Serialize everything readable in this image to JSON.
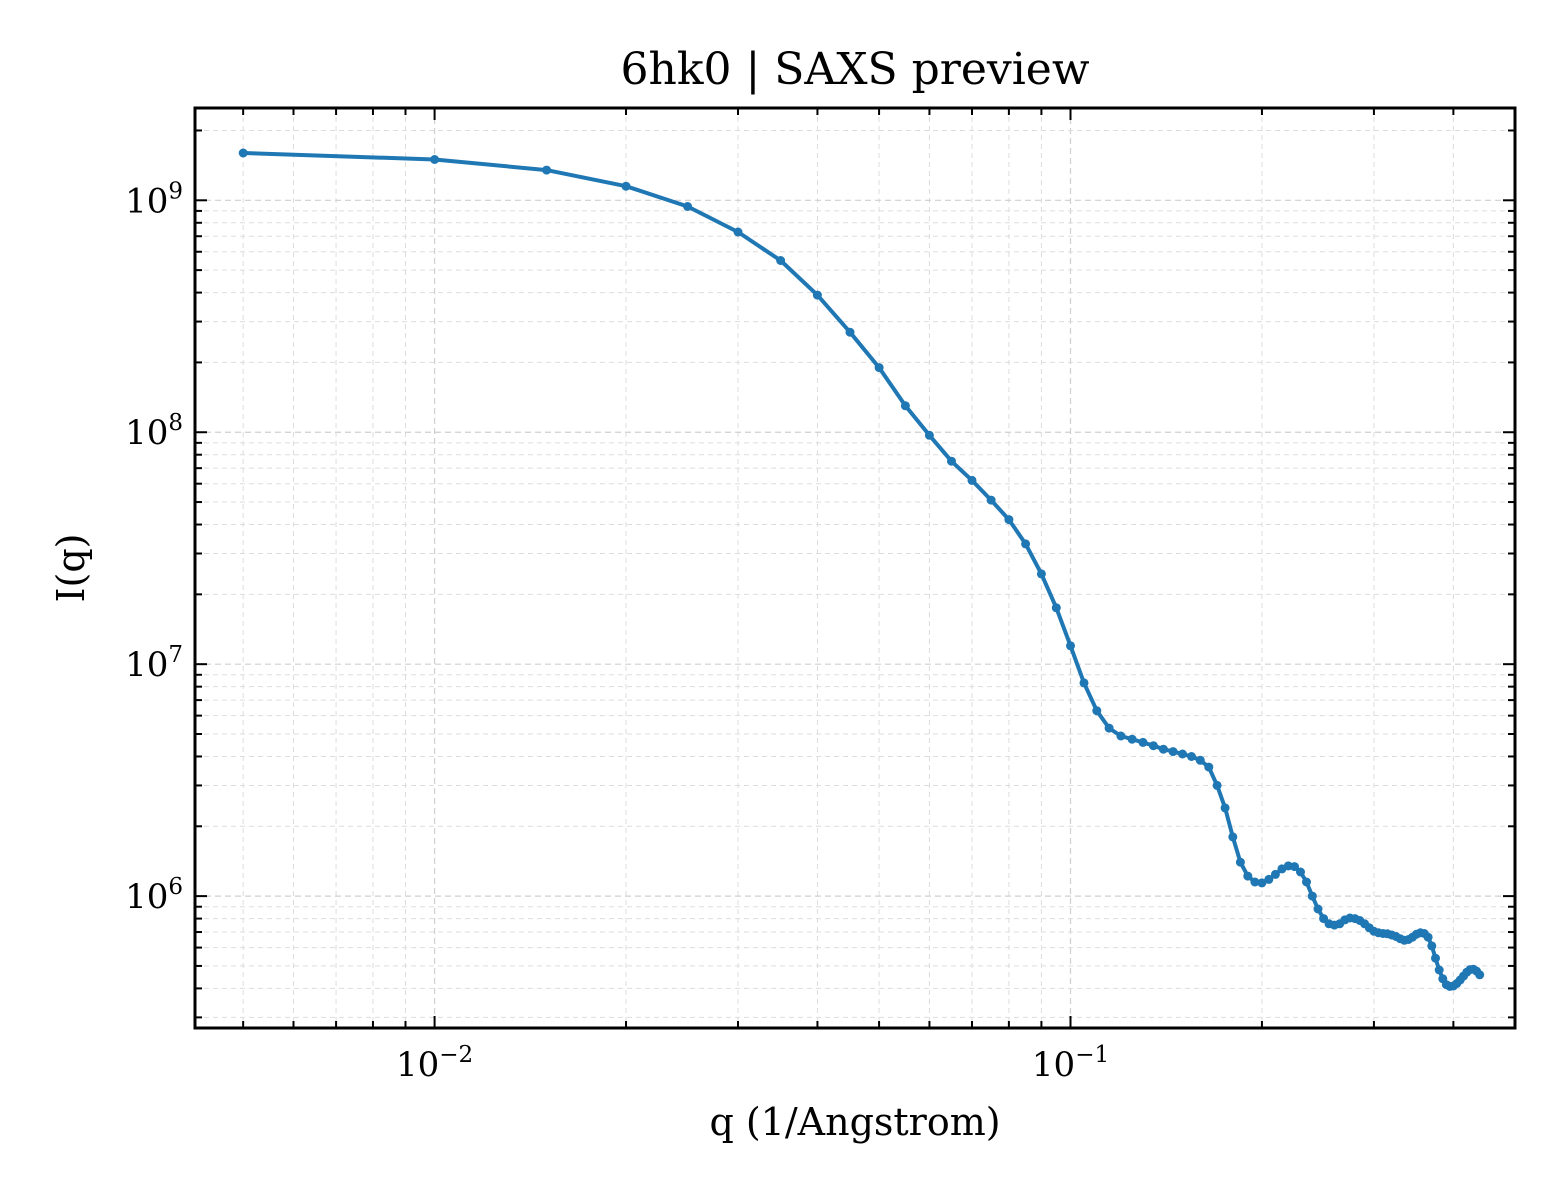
{
  "chart_data": {
    "type": "line",
    "title": "6hk0 | SAXS preview",
    "xlabel": "q (1/Angstrom)",
    "ylabel": "I(q)",
    "xscale": "log",
    "yscale": "log",
    "xlim": [
      0.0042,
      0.5
    ],
    "ylim": [
      270000,
      2500000000
    ],
    "grid": true,
    "legend": "none",
    "colors": {
      "series": "#1f77b4"
    },
    "x_ticks": [
      {
        "value": 0.01,
        "base": "10",
        "exp": "−2"
      },
      {
        "value": 0.1,
        "base": "10",
        "exp": "−1"
      }
    ],
    "y_ticks": [
      {
        "value": 1000000,
        "base": "10",
        "exp": "6"
      },
      {
        "value": 10000000,
        "base": "10",
        "exp": "7"
      },
      {
        "value": 100000000,
        "base": "10",
        "exp": "8"
      },
      {
        "value": 1000000000,
        "base": "10",
        "exp": "9"
      }
    ],
    "series": [
      {
        "marker": "circle",
        "points": [
          [
            0.005,
            1600000000
          ],
          [
            0.01,
            1500000000
          ],
          [
            0.015,
            1350000000
          ],
          [
            0.02,
            1150000000
          ],
          [
            0.025,
            940000000
          ],
          [
            0.03,
            730000000
          ],
          [
            0.035,
            550000000
          ],
          [
            0.04,
            390000000
          ],
          [
            0.045,
            270000000
          ],
          [
            0.05,
            190000000
          ],
          [
            0.055,
            130000000
          ],
          [
            0.06,
            97000000
          ],
          [
            0.065,
            75000000
          ],
          [
            0.07,
            62000000
          ],
          [
            0.075,
            51000000
          ],
          [
            0.08,
            42000000
          ],
          [
            0.085,
            33000000
          ],
          [
            0.09,
            24500000
          ],
          [
            0.095,
            17500000
          ],
          [
            0.1,
            12000000
          ],
          [
            0.105,
            8300000
          ],
          [
            0.11,
            6300000
          ],
          [
            0.115,
            5300000
          ],
          [
            0.12,
            4900000
          ],
          [
            0.125,
            4750000
          ],
          [
            0.13,
            4600000
          ],
          [
            0.135,
            4450000
          ],
          [
            0.14,
            4300000
          ],
          [
            0.145,
            4200000
          ],
          [
            0.15,
            4100000
          ],
          [
            0.155,
            4000000
          ],
          [
            0.16,
            3850000
          ],
          [
            0.165,
            3600000
          ],
          [
            0.17,
            3000000
          ],
          [
            0.175,
            2400000
          ],
          [
            0.18,
            1800000
          ],
          [
            0.185,
            1400000
          ],
          [
            0.19,
            1220000
          ],
          [
            0.195,
            1150000
          ],
          [
            0.2,
            1140000
          ],
          [
            0.205,
            1180000
          ],
          [
            0.21,
            1240000
          ],
          [
            0.215,
            1310000
          ],
          [
            0.22,
            1350000
          ],
          [
            0.225,
            1340000
          ],
          [
            0.23,
            1270000
          ],
          [
            0.235,
            1150000
          ],
          [
            0.24,
            1000000
          ],
          [
            0.245,
            880000
          ],
          [
            0.25,
            800000
          ],
          [
            0.255,
            760000
          ],
          [
            0.26,
            750000
          ],
          [
            0.265,
            760000
          ],
          [
            0.27,
            790000
          ],
          [
            0.275,
            805000
          ],
          [
            0.28,
            800000
          ],
          [
            0.285,
            785000
          ],
          [
            0.29,
            760000
          ],
          [
            0.295,
            730000
          ],
          [
            0.3,
            705000
          ],
          [
            0.305,
            695000
          ],
          [
            0.31,
            690000
          ],
          [
            0.315,
            688000
          ],
          [
            0.32,
            680000
          ],
          [
            0.325,
            670000
          ],
          [
            0.33,
            655000
          ],
          [
            0.335,
            645000
          ],
          [
            0.34,
            650000
          ],
          [
            0.345,
            665000
          ],
          [
            0.35,
            685000
          ],
          [
            0.355,
            695000
          ],
          [
            0.36,
            690000
          ],
          [
            0.365,
            665000
          ],
          [
            0.37,
            610000
          ],
          [
            0.375,
            540000
          ],
          [
            0.38,
            480000
          ],
          [
            0.385,
            440000
          ],
          [
            0.39,
            415000
          ],
          [
            0.395,
            408000
          ],
          [
            0.4,
            410000
          ],
          [
            0.405,
            420000
          ],
          [
            0.41,
            435000
          ],
          [
            0.415,
            452000
          ],
          [
            0.42,
            470000
          ],
          [
            0.425,
            482000
          ],
          [
            0.43,
            484000
          ],
          [
            0.435,
            475000
          ],
          [
            0.44,
            458000
          ]
        ]
      }
    ]
  }
}
